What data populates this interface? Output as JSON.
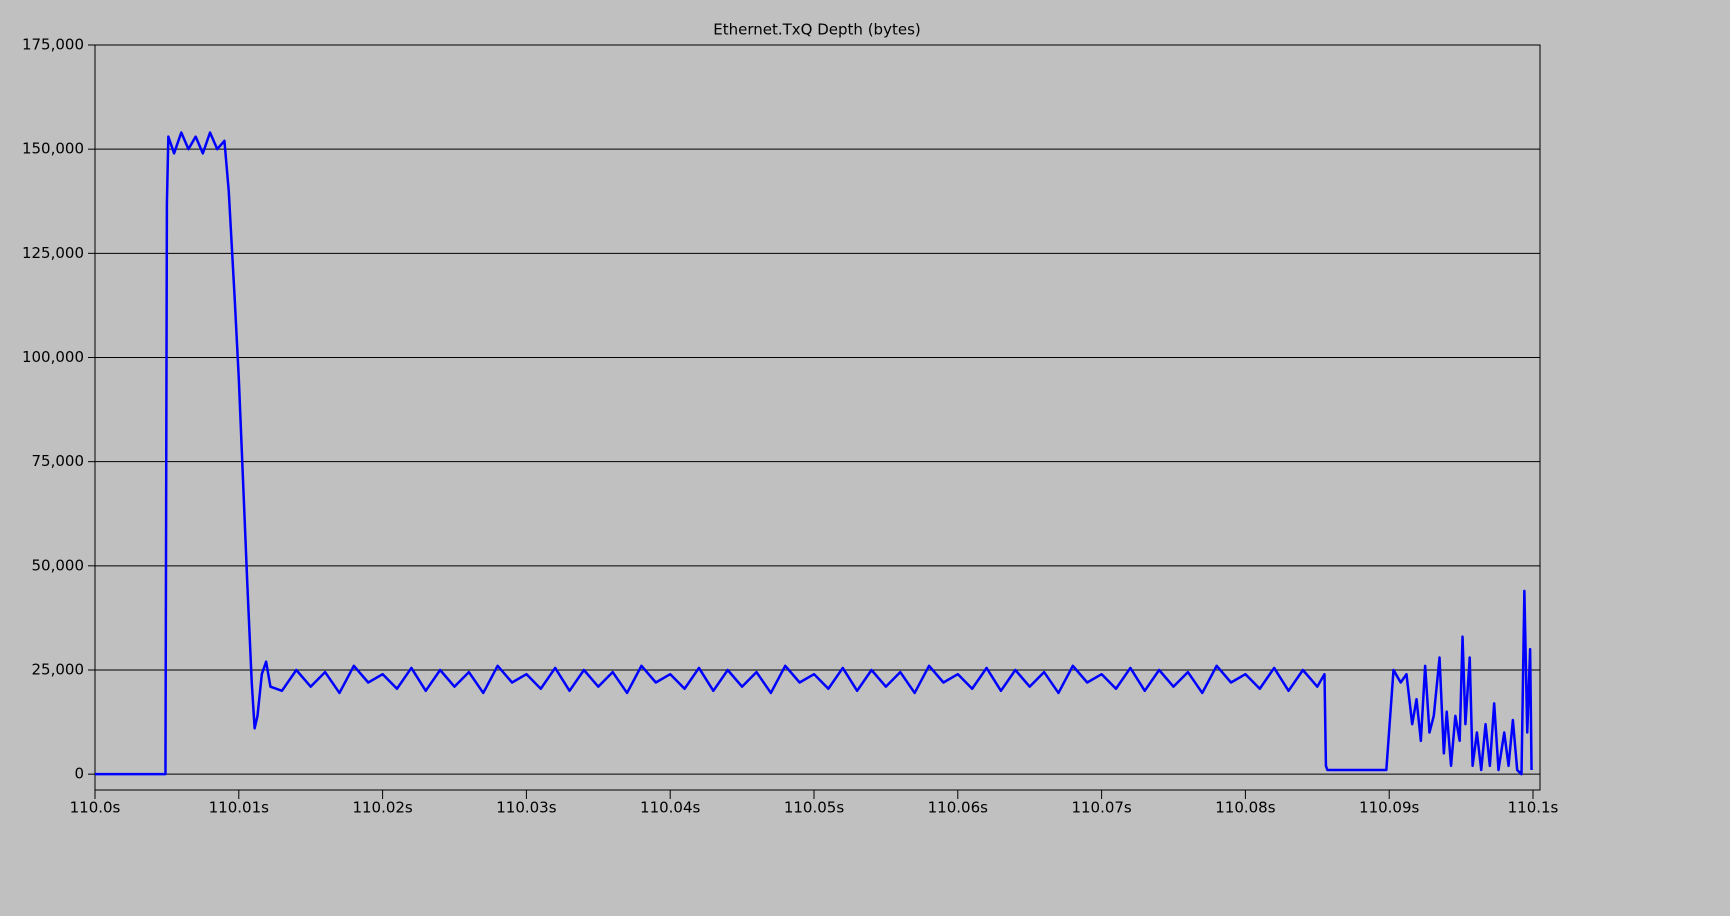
{
  "chart_data": {
    "type": "line",
    "title": "Ethernet.TxQ Depth (bytes)",
    "x": [
      110.0,
      110.0049,
      110.005,
      110.0051,
      110.0055,
      110.006,
      110.0065,
      110.007,
      110.0075,
      110.008,
      110.0085,
      110.009,
      110.0093,
      110.0097,
      110.01,
      110.0103,
      110.0106,
      110.0109,
      110.0111,
      110.0113,
      110.0116,
      110.0119,
      110.0122,
      110.013,
      110.014,
      110.015,
      110.016,
      110.017,
      110.018,
      110.019,
      110.02,
      110.021,
      110.022,
      110.023,
      110.024,
      110.025,
      110.026,
      110.027,
      110.028,
      110.029,
      110.03,
      110.031,
      110.032,
      110.033,
      110.034,
      110.035,
      110.036,
      110.037,
      110.038,
      110.039,
      110.04,
      110.041,
      110.042,
      110.043,
      110.044,
      110.045,
      110.046,
      110.047,
      110.048,
      110.049,
      110.05,
      110.051,
      110.052,
      110.053,
      110.054,
      110.055,
      110.056,
      110.057,
      110.058,
      110.059,
      110.06,
      110.061,
      110.062,
      110.063,
      110.064,
      110.065,
      110.066,
      110.067,
      110.068,
      110.069,
      110.07,
      110.071,
      110.072,
      110.073,
      110.074,
      110.075,
      110.076,
      110.077,
      110.078,
      110.079,
      110.08,
      110.081,
      110.082,
      110.083,
      110.084,
      110.085,
      110.0855,
      110.0856,
      110.0857,
      110.0898,
      110.0903,
      110.0908,
      110.0912,
      110.0916,
      110.0919,
      110.0922,
      110.0925,
      110.0928,
      110.0931,
      110.0935,
      110.0938,
      110.094,
      110.0943,
      110.0946,
      110.0949,
      110.0951,
      110.0953,
      110.0956,
      110.0958,
      110.0961,
      110.0964,
      110.0967,
      110.097,
      110.0973,
      110.0976,
      110.098,
      110.0983,
      110.0986,
      110.0989,
      110.0992,
      110.0994,
      110.0996,
      110.0998,
      110.0999
    ],
    "series": [
      {
        "color": "#0000ff",
        "values": [
          0,
          0,
          137000,
          153000,
          149000,
          154000,
          150000,
          153000,
          149000,
          154000,
          150000,
          152000,
          140000,
          115000,
          95000,
          70000,
          45000,
          22000,
          11000,
          14000,
          24000,
          27000,
          21000,
          20000,
          25000,
          21000,
          24500,
          19500,
          26000,
          22000,
          24000,
          20500,
          25500,
          20000,
          25000,
          21000,
          24500,
          19500,
          26000,
          22000,
          24000,
          20500,
          25500,
          20000,
          25000,
          21000,
          24500,
          19500,
          26000,
          22000,
          24000,
          20500,
          25500,
          20000,
          25000,
          21000,
          24500,
          19500,
          26000,
          22000,
          24000,
          20500,
          25500,
          20000,
          25000,
          21000,
          24500,
          19500,
          26000,
          22000,
          24000,
          20500,
          25500,
          20000,
          25000,
          21000,
          24500,
          19500,
          26000,
          22000,
          24000,
          20500,
          25500,
          20000,
          25000,
          21000,
          24500,
          19500,
          26000,
          22000,
          24000,
          20500,
          25500,
          20000,
          25000,
          21000,
          24000,
          2000,
          1000,
          1000,
          25000,
          22000,
          24000,
          12000,
          18000,
          8000,
          26000,
          10000,
          14000,
          28000,
          5000,
          15000,
          2000,
          14000,
          8000,
          33000,
          12000,
          28000,
          2000,
          10000,
          1000,
          12000,
          2000,
          17000,
          1000,
          10000,
          2000,
          13000,
          1000,
          0,
          44000,
          10000,
          30000,
          1000
        ]
      }
    ],
    "xlim": [
      110.0,
      110.1
    ],
    "ylim": [
      -3800,
      175000
    ],
    "xticks": [
      {
        "value": 110.0,
        "label": "110.0s"
      },
      {
        "value": 110.01,
        "label": "110.01s"
      },
      {
        "value": 110.02,
        "label": "110.02s"
      },
      {
        "value": 110.03,
        "label": "110.03s"
      },
      {
        "value": 110.04,
        "label": "110.04s"
      },
      {
        "value": 110.05,
        "label": "110.05s"
      },
      {
        "value": 110.06,
        "label": "110.06s"
      },
      {
        "value": 110.07,
        "label": "110.07s"
      },
      {
        "value": 110.08,
        "label": "110.08s"
      },
      {
        "value": 110.09,
        "label": "110.09s"
      },
      {
        "value": 110.1,
        "label": "110.1s"
      }
    ],
    "yticks": [
      0,
      {
        "value": 25000,
        "label": "25,000"
      },
      {
        "value": 50000,
        "label": "50,000"
      },
      {
        "value": 75000,
        "label": "75,000"
      },
      {
        "value": 100000,
        "label": "100,000"
      },
      {
        "value": 125000,
        "label": "125,000"
      },
      {
        "value": 150000,
        "label": "150,000"
      },
      {
        "value": 175000,
        "label": "175,000"
      }
    ],
    "grid": true
  }
}
